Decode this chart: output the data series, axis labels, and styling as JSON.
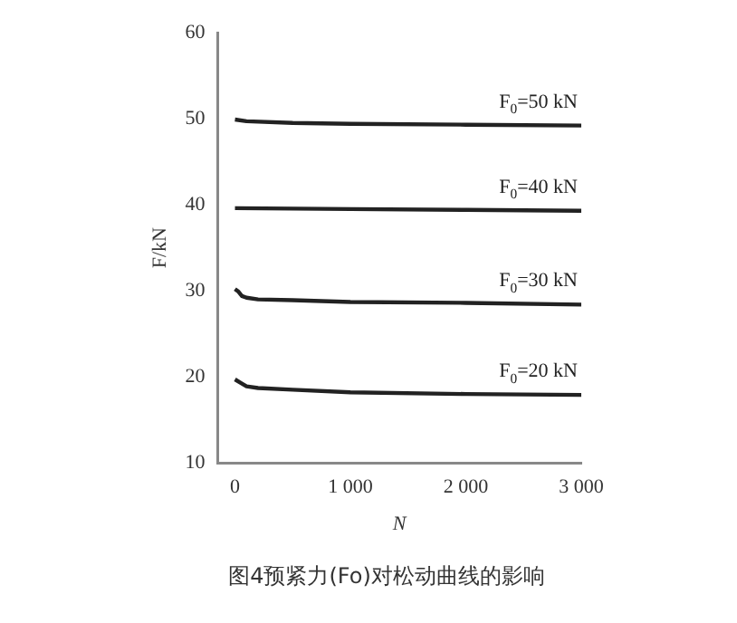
{
  "chart_data": {
    "type": "line",
    "xlabel": "N",
    "ylabel": "F/kN",
    "xlim": [
      -150,
      3000
    ],
    "ylim": [
      10,
      60
    ],
    "xticks": [
      0,
      {
        "value": 1000,
        "label": "1 000"
      },
      {
        "value": 2000,
        "label": "2 000"
      },
      {
        "value": 3000,
        "label": "3 000"
      }
    ],
    "yticks": [
      10,
      20,
      30,
      40,
      50,
      60
    ],
    "grid": false,
    "legend": false,
    "marker": "none",
    "line_style": "solid",
    "series": [
      {
        "name": "F$_{0}$=50 kN",
        "color": "#222222",
        "x": [
          0,
          100,
          500,
          1000,
          2000,
          3000
        ],
        "values": [
          49.9,
          49.7,
          49.5,
          49.4,
          49.3,
          49.2
        ]
      },
      {
        "name": "F$_{0}$=40 kN",
        "color": "#222222",
        "x": [
          0,
          1000,
          2000,
          3000
        ],
        "values": [
          39.6,
          39.5,
          39.4,
          39.3
        ]
      },
      {
        "name": "F$_{0}$=30 kN",
        "color": "#222222",
        "x": [
          0,
          30,
          60,
          100,
          200,
          500,
          1000,
          2000,
          3000
        ],
        "values": [
          30.2,
          29.9,
          29.4,
          29.2,
          29.0,
          28.9,
          28.7,
          28.6,
          28.4
        ]
      },
      {
        "name": "F$_{0}$=20 kN",
        "color": "#222222",
        "x": [
          0,
          50,
          100,
          200,
          500,
          1000,
          2000,
          3000
        ],
        "values": [
          19.7,
          19.3,
          18.9,
          18.7,
          18.5,
          18.2,
          18.0,
          17.9
        ]
      }
    ],
    "annotations": [
      "图4预紧力(Fo)对松动曲线的影响"
    ]
  }
}
